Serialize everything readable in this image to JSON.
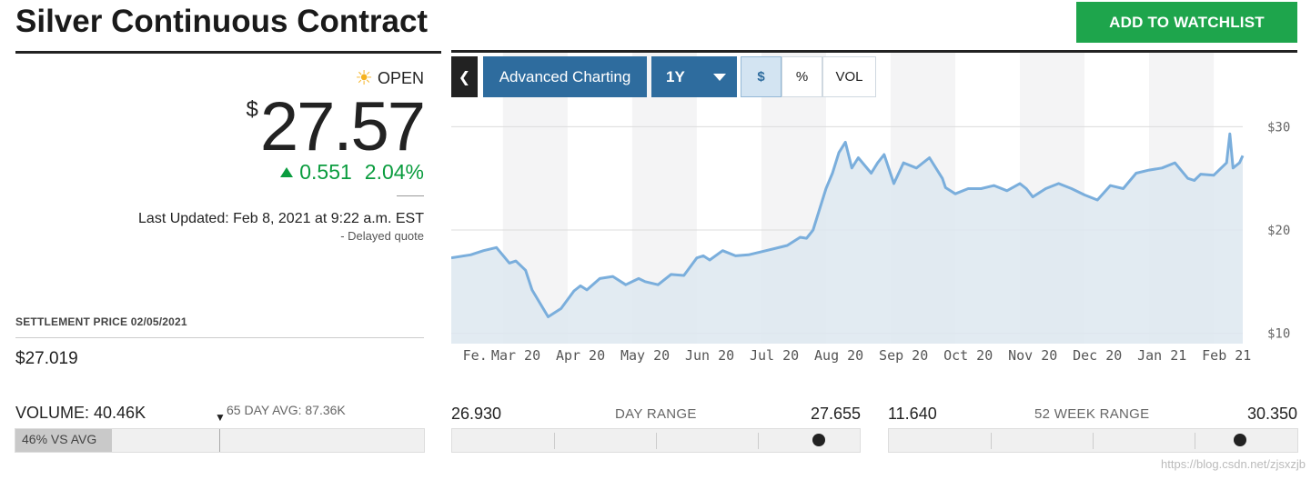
{
  "header": {
    "title": "Silver Continuous Contract",
    "watchlist_label": "ADD TO WATCHLIST"
  },
  "quote": {
    "status": "OPEN",
    "currency_symbol": "$",
    "price": "27.57",
    "change": "0.551",
    "change_pct": "2.04%",
    "direction": "up",
    "last_updated": "Last Updated: Feb 8, 2021 at 9:22 a.m. EST",
    "delayed": "-  Delayed quote"
  },
  "settlement": {
    "label": "SETTLEMENT PRICE 02/05/2021",
    "value": "$27.019"
  },
  "volume": {
    "label": "VOLUME: 40.46K",
    "avg_label": "65 DAY AVG: 87.36K",
    "fill_label": "46% VS AVG",
    "pct_vs_avg": 0.46
  },
  "day_range": {
    "low": "26.930",
    "label": "DAY RANGE",
    "high": "27.655",
    "position": 0.9
  },
  "week52_range": {
    "low": "11.640",
    "label": "52 WEEK RANGE",
    "high": "30.350",
    "position": 0.86
  },
  "chart_toolbar": {
    "back_icon": "chevron-left-icon",
    "advanced_label": "Advanced Charting",
    "range_label": "1Y",
    "modes": [
      "$",
      "%",
      "VOL"
    ],
    "active_mode": "$"
  },
  "colors": {
    "accent_green": "#1ea54c",
    "positive": "#0a9c3e",
    "toolbar_blue": "#2e6c9e",
    "line": "#7aaedc",
    "area": "#dde8f0"
  },
  "watermark": "https://blog.csdn.net/zjsxzjb",
  "chart_data": {
    "type": "area",
    "title": "",
    "xlabel": "",
    "ylabel": "",
    "ylim": [
      9,
      31
    ],
    "y_ticks": [
      "$30",
      "$20",
      "$10"
    ],
    "y_tick_values": [
      30,
      20,
      10
    ],
    "x_tick_labels": [
      "Fe.",
      "Mar 20",
      "Apr 20",
      "May 20",
      "Jun 20",
      "Jul 20",
      "Aug 20",
      "Sep 20",
      "Oct 20",
      "Nov 20",
      "Dec 20",
      "Jan 21",
      "Feb 21"
    ],
    "x_tick_months": [
      0.15,
      1,
      2,
      3,
      4,
      5,
      6,
      7,
      8,
      9,
      10,
      11,
      12
    ],
    "x_range_months": [
      0,
      12.25
    ],
    "grid": true,
    "series": [
      {
        "x": [
          0,
          0.3,
          0.5,
          0.7,
          0.9,
          1.0,
          1.15,
          1.25,
          1.5,
          1.7,
          1.9,
          2.0,
          2.1,
          2.3,
          2.5,
          2.7,
          2.9,
          3.0,
          3.2,
          3.4,
          3.6,
          3.8,
          3.9,
          4.0,
          4.2,
          4.4,
          4.6,
          4.8,
          5.0,
          5.2,
          5.4,
          5.5,
          5.6,
          5.8,
          5.9,
          6.0,
          6.1,
          6.2,
          6.3,
          6.5,
          6.6,
          6.7,
          6.85,
          7.0,
          7.2,
          7.4,
          7.6,
          7.65,
          7.8,
          8.0,
          8.2,
          8.4,
          8.6,
          8.8,
          8.9,
          9.0,
          9.2,
          9.4,
          9.6,
          9.8,
          10.0,
          10.2,
          10.4,
          10.6,
          10.8,
          11.0,
          11.2,
          11.4,
          11.5,
          11.6,
          11.8,
          12.0,
          12.05,
          12.1,
          12.2,
          12.25
        ],
        "y": [
          17.3,
          17.6,
          18.0,
          18.3,
          16.8,
          17.0,
          16.1,
          14.2,
          11.6,
          12.4,
          14.1,
          14.6,
          14.2,
          15.3,
          15.5,
          14.7,
          15.3,
          15.0,
          14.7,
          15.7,
          15.6,
          17.3,
          17.5,
          17.1,
          18.0,
          17.5,
          17.6,
          17.9,
          18.2,
          18.5,
          19.3,
          19.2,
          20.0,
          24.0,
          25.5,
          27.5,
          28.5,
          26.0,
          27.0,
          25.5,
          26.5,
          27.3,
          24.5,
          26.5,
          26.0,
          27.0,
          25.0,
          24.1,
          23.5,
          24.0,
          24.0,
          24.3,
          23.8,
          24.5,
          24.0,
          23.2,
          24.0,
          24.5,
          24.0,
          23.4,
          22.9,
          24.3,
          24.0,
          25.5,
          25.8,
          26.0,
          26.5,
          25.0,
          24.8,
          25.4,
          25.3,
          26.5,
          29.3,
          26.0,
          26.5,
          27.2
        ]
      }
    ]
  }
}
